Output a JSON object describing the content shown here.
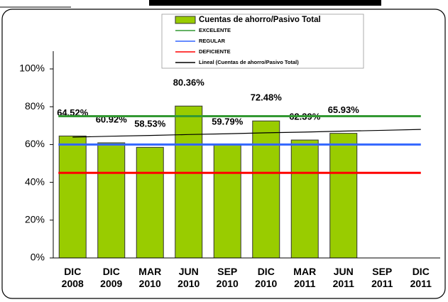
{
  "chart_data": {
    "type": "bar",
    "categories": [
      "DIC 2008",
      "DIC 2009",
      "MAR 2010",
      "JUN 2010",
      "SEP 2010",
      "DIC 2010",
      "MAR 2011",
      "JUN 2011",
      "SEP 2011",
      "DIC 2011"
    ],
    "series": [
      {
        "name": "Cuentas de ahorro/Pasivo Total",
        "color": "#99cc00",
        "values": [
          64.52,
          60.92,
          58.53,
          80.36,
          59.79,
          72.48,
          62.39,
          65.93,
          null,
          null
        ],
        "value_labels": [
          "64.52%",
          "60.92%",
          "58.53%",
          "80.36%",
          "59.79%",
          "72.48%",
          "62.39%",
          "65.93%",
          null,
          null
        ]
      }
    ],
    "reference_lines": [
      {
        "name": "EXCELENTE",
        "color": "#339933",
        "value": 75
      },
      {
        "name": "REGULAR",
        "color": "#3366ff",
        "value": 60
      },
      {
        "name": "DEFICIENTE",
        "color": "#ff0000",
        "value": 45
      }
    ],
    "trendline": {
      "name": "Lineal (Cuentas de ahorro/Pasivo Total)",
      "color": "#000000",
      "values": [
        63.9,
        64.4,
        64.8,
        65.3,
        65.7,
        66.2,
        66.6,
        67.1,
        67.5,
        68.0
      ]
    },
    "ylim": [
      0,
      100
    ],
    "yticks": [
      {
        "value": 0,
        "label": "0%"
      },
      {
        "value": 20,
        "label": "20%"
      },
      {
        "value": 40,
        "label": "40%"
      },
      {
        "value": 60,
        "label": "60%"
      },
      {
        "value": 80,
        "label": "80%"
      },
      {
        "value": 100,
        "label": "100%"
      }
    ],
    "grid": false
  }
}
